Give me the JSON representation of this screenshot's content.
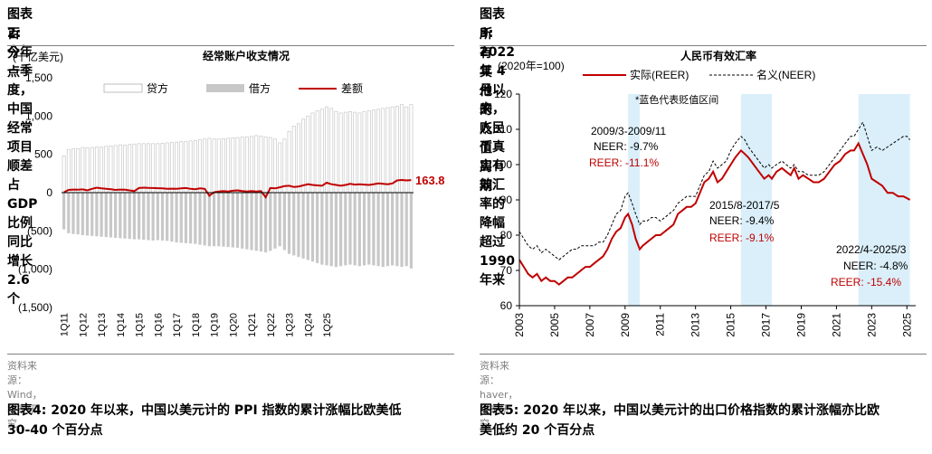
{
  "left": {
    "title_line1": "图表2:  今年一季度，中国经常项目顺差占 GDP 比例同比增长 2.6 个",
    "title_line2": "百分点",
    "source": "资料来源：Wind，华泰研究",
    "chart_data": {
      "type": "bar",
      "title": "经常账户收支情况",
      "ylabel": "(十亿美元)",
      "ylim": [
        -1500,
        1500
      ],
      "yticks": [
        1500,
        1000,
        500,
        0,
        -500,
        -1000,
        -1500
      ],
      "ytick_labels": [
        "1,500",
        "1,000",
        "500",
        "0",
        "(500)",
        "(1,000)",
        "(1,500)"
      ],
      "xtick_labels": [
        "1Q11",
        "1Q12",
        "1Q13",
        "1Q14",
        "1Q15",
        "1Q16",
        "1Q17",
        "1Q18",
        "1Q19",
        "1Q20",
        "1Q21",
        "1Q22",
        "1Q23",
        "1Q24",
        "1Q25"
      ],
      "legend_position": "top",
      "series": [
        {
          "name": "贷方",
          "kind": "bar",
          "color": "#ffffff",
          "stroke": "#bfbfbf",
          "values": [
            480,
            565,
            570,
            575,
            590,
            585,
            590,
            595,
            595,
            605,
            610,
            615,
            625,
            620,
            630,
            635,
            640,
            640,
            640,
            640,
            640,
            645,
            650,
            655,
            660,
            665,
            670,
            675,
            680,
            690,
            700,
            710,
            700,
            700,
            705,
            710,
            715,
            720,
            725,
            730,
            735,
            745,
            740,
            730,
            720,
            700,
            650,
            700,
            800,
            870,
            900,
            960,
            1000,
            1040,
            1070,
            1090,
            1120,
            1100,
            1060,
            1040,
            1050,
            1060,
            1050,
            1040,
            1060,
            1070,
            1080,
            1090,
            1100,
            1110,
            1120,
            1130,
            1150,
            1120,
            1150
          ]
        },
        {
          "name": "借方",
          "kind": "bar",
          "color": "#c8c8c8",
          "values": [
            -480,
            -530,
            -540,
            -545,
            -555,
            -560,
            -565,
            -570,
            -575,
            -580,
            -585,
            -590,
            -595,
            -600,
            -605,
            -610,
            -610,
            -615,
            -620,
            -625,
            -620,
            -625,
            -630,
            -640,
            -650,
            -655,
            -660,
            -665,
            -670,
            -680,
            -690,
            -700,
            -700,
            -700,
            -705,
            -710,
            -715,
            -720,
            -730,
            -740,
            -750,
            -760,
            -770,
            -780,
            -760,
            -730,
            -700,
            -750,
            -800,
            -820,
            -840,
            -860,
            -880,
            -900,
            -920,
            -940,
            -950,
            -960,
            -970,
            -960,
            -950,
            -940,
            -950,
            -960,
            -950,
            -940,
            -950,
            -960,
            -970,
            -960,
            -950,
            -960,
            -970,
            -960,
            -990
          ]
        },
        {
          "name": "差额",
          "kind": "line",
          "color": "#c00000",
          "values": [
            5,
            35,
            40,
            38,
            42,
            30,
            50,
            65,
            55,
            50,
            45,
            35,
            40,
            38,
            30,
            20,
            60,
            65,
            62,
            60,
            58,
            55,
            50,
            52,
            50,
            55,
            60,
            50,
            45,
            55,
            50,
            -40,
            5,
            15,
            20,
            15,
            25,
            30,
            20,
            15,
            20,
            15,
            20,
            -60,
            60,
            55,
            70,
            85,
            90,
            75,
            80,
            95,
            110,
            100,
            95,
            90,
            130,
            110,
            100,
            90,
            100,
            115,
            105,
            110,
            105,
            100,
            110,
            120,
            115,
            110,
            120,
            160,
            165,
            160,
            163.8
          ]
        }
      ],
      "annotation": "163.8"
    }
  },
  "right": {
    "title_line1": "图表3:  2022 年 4 月以来，人民币真实有效汇率的降幅超过 1990 年来",
    "title_line2": "所有其他的贬值周期",
    "source": "资料来源：haver，华泰研究",
    "chart_data": {
      "type": "line",
      "title": "人民币有效汇率",
      "ylabel": "(2020年=100)",
      "ylim": [
        60,
        120
      ],
      "yticks": [
        60,
        70,
        80,
        90,
        100,
        110,
        120
      ],
      "xlim": [
        2003,
        2025.5
      ],
      "xticks": [
        2003,
        2005,
        2007,
        2009,
        2011,
        2013,
        2015,
        2017,
        2019,
        2021,
        2023,
        2025
      ],
      "legend_position": "top",
      "note": "*蓝色代表贬值区间",
      "shaded_periods": [
        [
          2009.17,
          2009.83
        ],
        [
          2015.58,
          2017.33
        ],
        [
          2022.25,
          2025.17
        ]
      ],
      "annotations": [
        {
          "lines": [
            "2009/3-2009/11",
            "NEER: -9.7%",
            "REER: -11.1%"
          ]
        },
        {
          "lines": [
            "2015/8-2017/5",
            "NEER: -9.4%",
            "REER: -9.1%"
          ]
        },
        {
          "lines": [
            "2022/4-2025/3",
            "NEER: -4.8%",
            "REER: -15.4%"
          ]
        }
      ],
      "series": [
        {
          "name": "实际(REER)",
          "color": "#c00000",
          "dash": "solid",
          "x": [
            2003.0,
            2003.25,
            2003.5,
            2003.75,
            2004.0,
            2004.25,
            2004.5,
            2004.75,
            2005.0,
            2005.25,
            2005.5,
            2005.75,
            2006.0,
            2006.25,
            2006.5,
            2006.75,
            2007.0,
            2007.25,
            2007.5,
            2007.75,
            2008.0,
            2008.25,
            2008.5,
            2008.75,
            2009.0,
            2009.17,
            2009.4,
            2009.6,
            2009.83,
            2010.0,
            2010.25,
            2010.5,
            2010.75,
            2011.0,
            2011.25,
            2011.5,
            2011.75,
            2012.0,
            2012.25,
            2012.5,
            2012.75,
            2013.0,
            2013.25,
            2013.5,
            2013.75,
            2014.0,
            2014.25,
            2014.5,
            2014.75,
            2015.0,
            2015.25,
            2015.58,
            2015.8,
            2016.0,
            2016.3,
            2016.6,
            2016.9,
            2017.15,
            2017.33,
            2017.6,
            2017.9,
            2018.15,
            2018.4,
            2018.6,
            2018.85,
            2019.1,
            2019.4,
            2019.7,
            2020.0,
            2020.3,
            2020.6,
            2020.9,
            2021.2,
            2021.5,
            2021.8,
            2022.0,
            2022.25,
            2022.5,
            2022.75,
            2023.0,
            2023.3,
            2023.6,
            2023.9,
            2024.2,
            2024.5,
            2024.8,
            2025.0,
            2025.17
          ],
          "y": [
            73,
            71,
            69,
            68,
            69,
            67,
            68,
            67,
            67,
            66,
            67,
            68,
            68,
            69,
            70,
            71,
            71,
            72,
            73,
            74,
            76,
            79,
            81,
            82,
            85,
            86,
            83,
            79,
            76,
            77,
            78,
            79,
            80,
            80,
            81,
            82,
            83,
            86,
            87,
            88,
            88,
            89,
            92,
            95,
            96,
            98,
            95,
            96,
            98,
            100,
            102,
            104,
            103,
            102,
            100,
            98,
            96,
            97,
            96,
            98,
            99,
            98,
            97,
            99,
            96,
            97,
            96,
            95,
            95,
            96,
            98,
            100,
            101,
            103,
            104,
            104,
            106,
            103,
            100,
            96,
            95,
            94,
            92,
            92,
            91,
            91,
            90.5,
            90
          ]
        },
        {
          "name": "名义(NEER)",
          "color": "#000000",
          "dash": "dashed",
          "x": [
            2003.0,
            2003.25,
            2003.5,
            2003.75,
            2004.0,
            2004.25,
            2004.5,
            2004.75,
            2005.0,
            2005.25,
            2005.5,
            2005.75,
            2006.0,
            2006.25,
            2006.5,
            2006.75,
            2007.0,
            2007.25,
            2007.5,
            2007.75,
            2008.0,
            2008.25,
            2008.5,
            2008.75,
            2009.0,
            2009.17,
            2009.4,
            2009.6,
            2009.83,
            2010.0,
            2010.25,
            2010.5,
            2010.75,
            2011.0,
            2011.25,
            2011.5,
            2011.75,
            2012.0,
            2012.25,
            2012.5,
            2012.75,
            2013.0,
            2013.25,
            2013.5,
            2013.75,
            2014.0,
            2014.25,
            2014.5,
            2014.75,
            2015.0,
            2015.25,
            2015.58,
            2015.8,
            2016.0,
            2016.3,
            2016.6,
            2016.9,
            2017.15,
            2017.33,
            2017.6,
            2017.9,
            2018.15,
            2018.4,
            2018.6,
            2018.85,
            2019.1,
            2019.4,
            2019.7,
            2020.0,
            2020.3,
            2020.6,
            2020.9,
            2021.2,
            2021.5,
            2021.8,
            2022.0,
            2022.25,
            2022.5,
            2022.75,
            2023.0,
            2023.3,
            2023.6,
            2023.9,
            2024.2,
            2024.5,
            2024.8,
            2025.0,
            2025.17
          ],
          "y": [
            81,
            79,
            77,
            76,
            77,
            75,
            76,
            75,
            74,
            73,
            74,
            75,
            76,
            76,
            77,
            77,
            77,
            77,
            78,
            78,
            80,
            83,
            86,
            87,
            91,
            92,
            89,
            86,
            83,
            84,
            84,
            85,
            85,
            84,
            85,
            86,
            87,
            89,
            90,
            91,
            91,
            91,
            94,
            97,
            98,
            101,
            99,
            100,
            101,
            104,
            106,
            108,
            107,
            105,
            103,
            101,
            99,
            100,
            99,
            100,
            101,
            100,
            99,
            100,
            98,
            98,
            97,
            97,
            97,
            98,
            100,
            102,
            104,
            106,
            108,
            108,
            110,
            112,
            108,
            104,
            105,
            104,
            105,
            106,
            107,
            108,
            108,
            107
          ]
        }
      ]
    }
  },
  "bottom": {
    "left_title_line1": "图表4:  2020 年以来，中国以美元计的 PPI 指数的累计涨幅比欧美低",
    "left_title_line2": "30-40 个百分点",
    "right_title_line1": "图表5:  2020 年以来，中国以美元计的出口价格指数的累计涨幅亦比欧",
    "right_title_line2": "美低约 20 个百分点"
  }
}
